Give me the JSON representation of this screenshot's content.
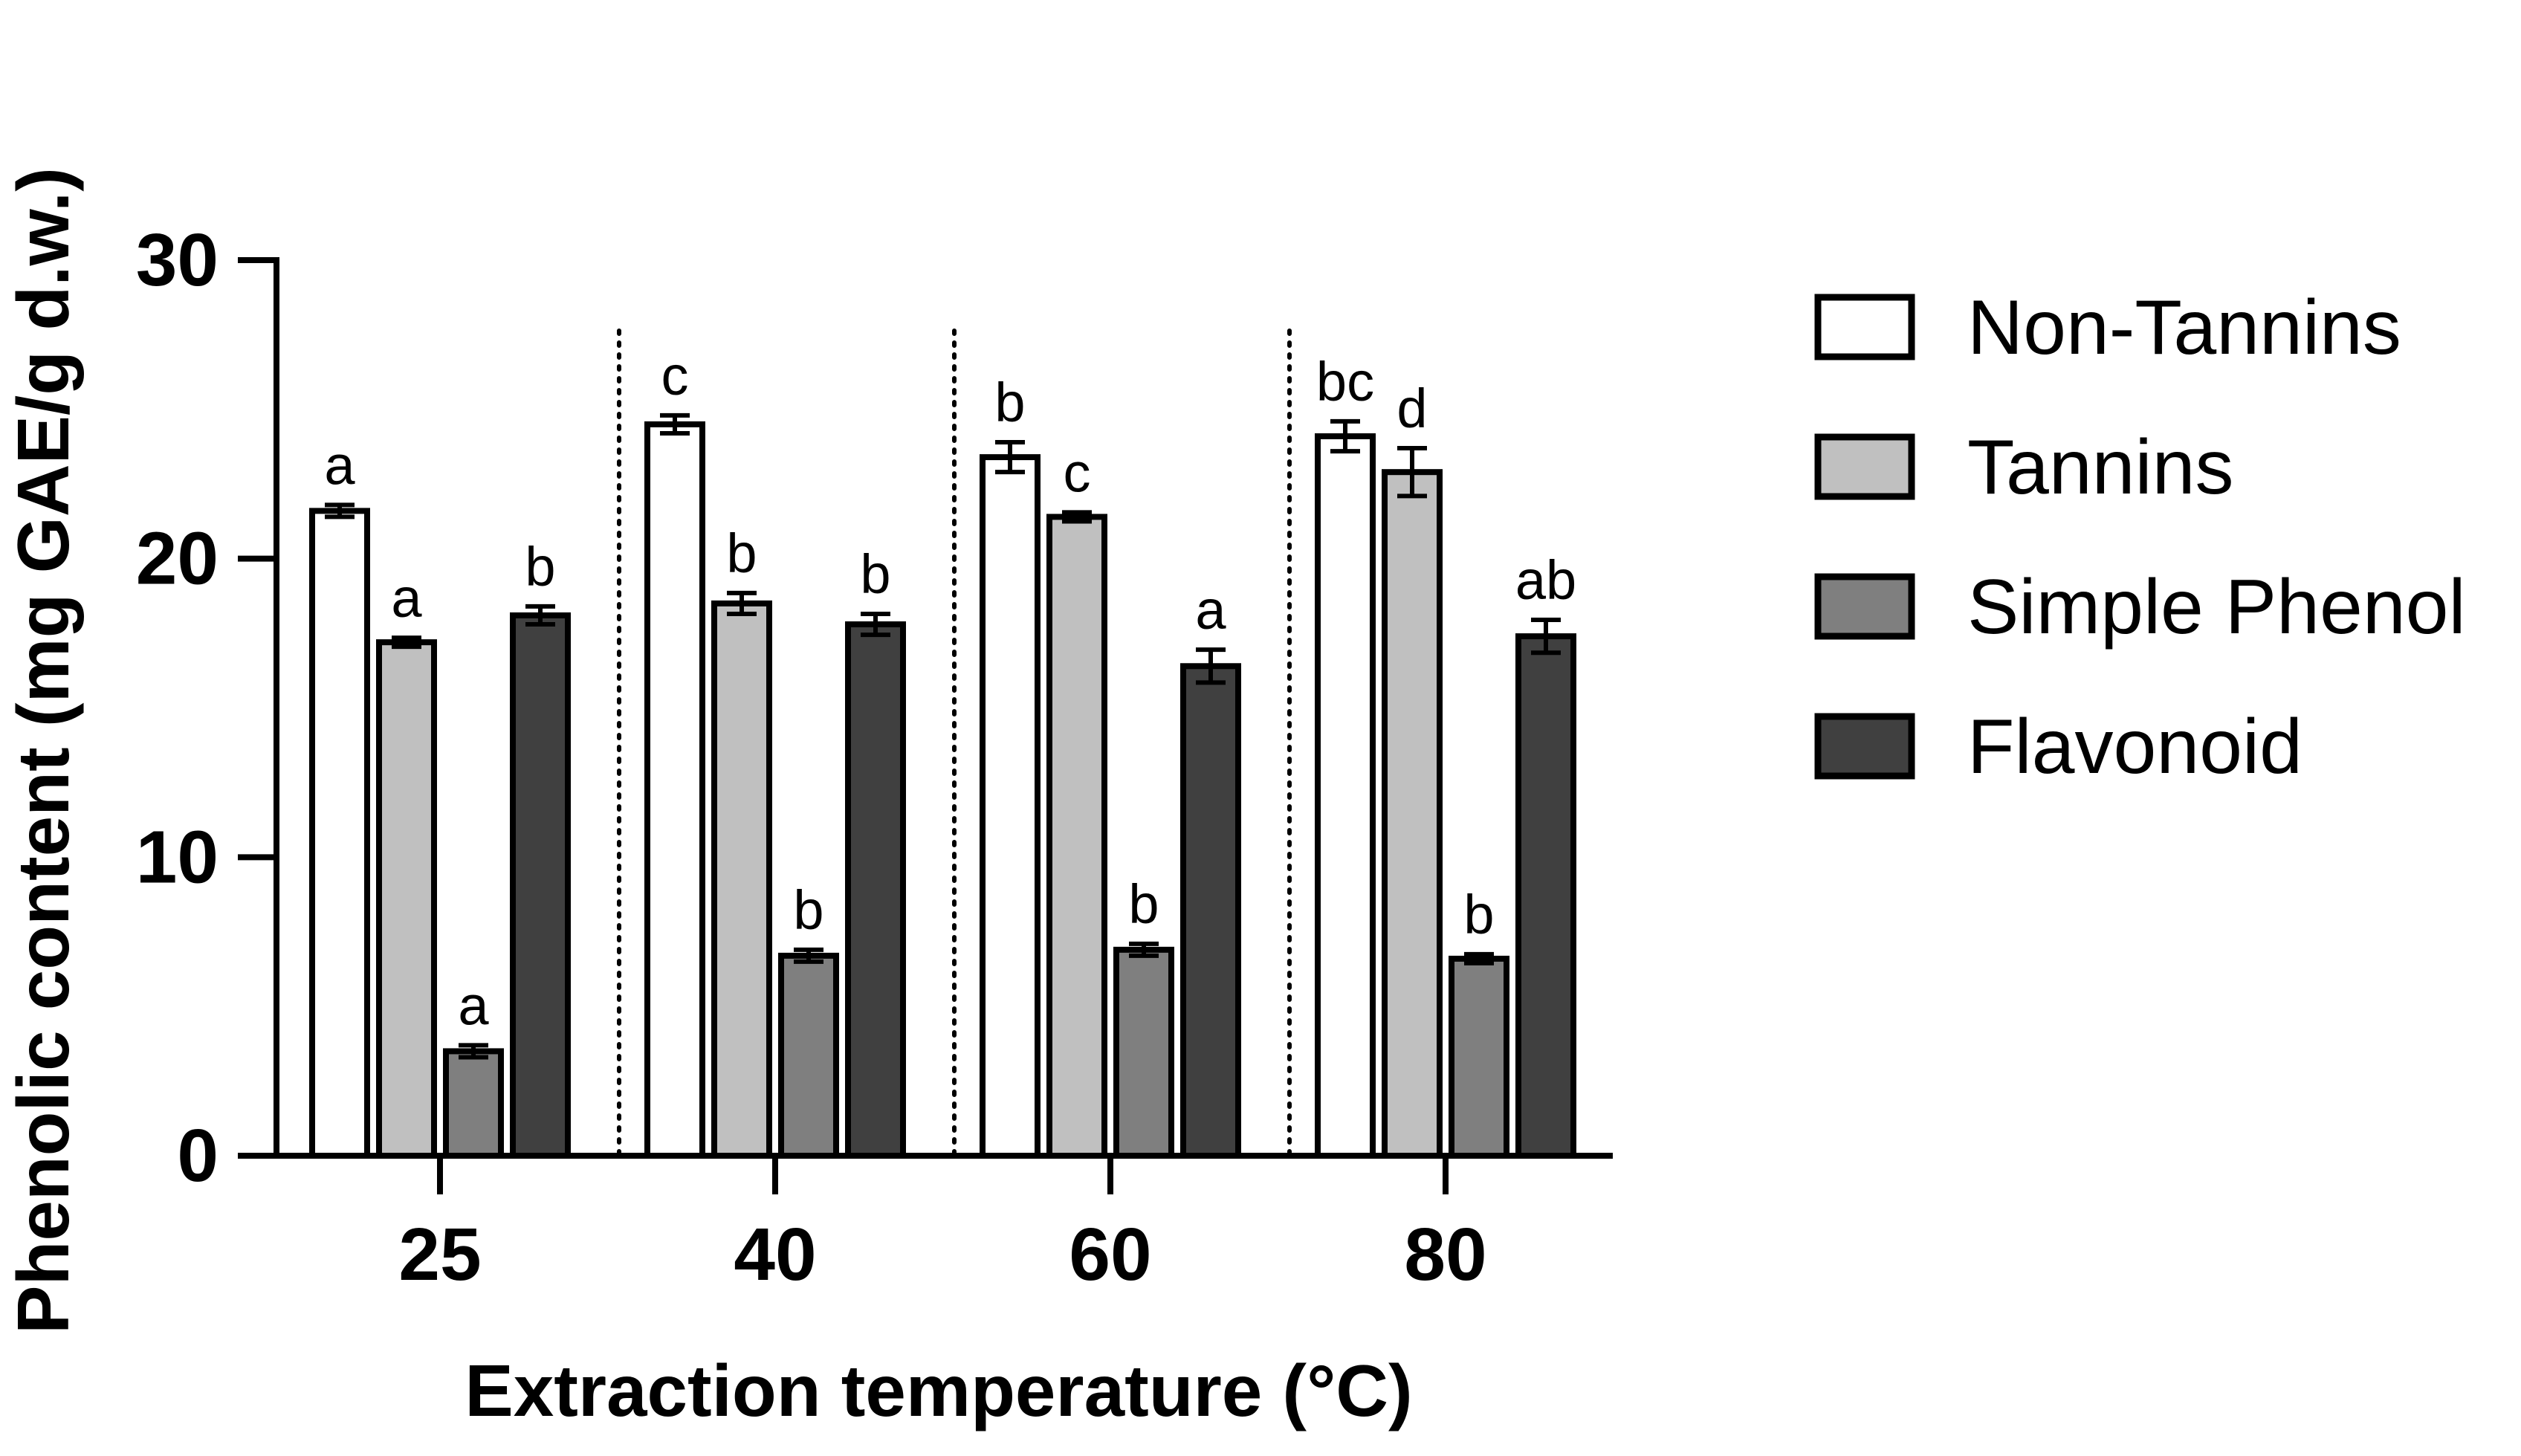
{
  "chart_data": {
    "type": "bar",
    "title": "",
    "xlabel": "Extraction temperature (°C)",
    "ylabel": "Phenolic content (mg GAE/g d.w.)",
    "ylim": [
      0,
      30
    ],
    "yticks": [
      "0",
      "10",
      "20",
      "30"
    ],
    "ytick_values": [
      0,
      10,
      20,
      30
    ],
    "categories": [
      "25",
      "40",
      "60",
      "80"
    ],
    "grid": false,
    "legend_position": "right",
    "group_separators": "dotted",
    "series": [
      {
        "name": "Non-Tannins",
        "color": "#ffffff",
        "values": [
          21.6,
          24.5,
          23.4,
          24.1
        ],
        "errors": [
          0.2,
          0.3,
          0.5,
          0.5
        ],
        "letters": [
          "a",
          "c",
          "b",
          "bc"
        ]
      },
      {
        "name": "Tannins",
        "color": "#c0c0c0",
        "values": [
          17.2,
          18.5,
          21.4,
          22.9
        ],
        "errors": [
          0.15,
          0.35,
          0.15,
          0.8
        ],
        "letters": [
          "a",
          "b",
          "c",
          "d"
        ]
      },
      {
        "name": "Simple Phenol",
        "color": "#7f7f7f",
        "values": [
          3.5,
          6.7,
          6.9,
          6.6
        ],
        "errors": [
          0.2,
          0.2,
          0.2,
          0.15
        ],
        "letters": [
          "a",
          "b",
          "b",
          "b"
        ]
      },
      {
        "name": "Flavonoid",
        "color": "#404040",
        "values": [
          18.1,
          17.8,
          16.4,
          17.4
        ],
        "errors": [
          0.3,
          0.35,
          0.55,
          0.55
        ],
        "letters": [
          "b",
          "b",
          "a",
          "ab"
        ]
      }
    ]
  }
}
